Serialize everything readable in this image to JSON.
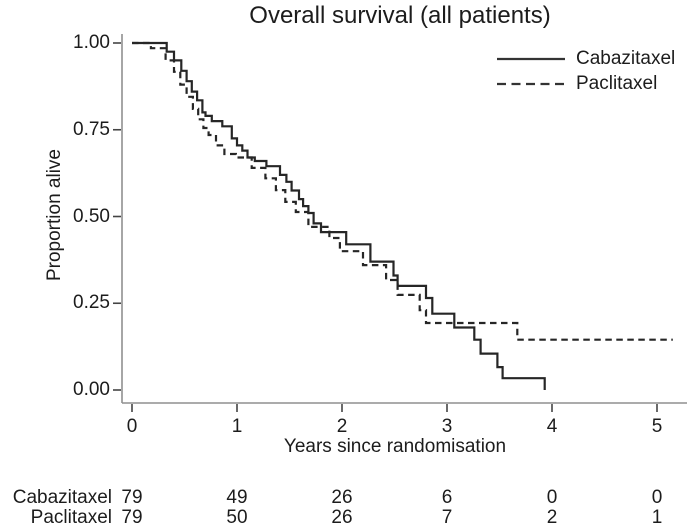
{
  "chart_data": {
    "type": "line",
    "subtype": "kaplan-meier-step",
    "title": "Overall survival (all patients)",
    "xlabel": "Years since randomisation",
    "ylabel": "Proportion alive",
    "xlim": [
      0,
      5.3
    ],
    "ylim": [
      0,
      1
    ],
    "grid": false,
    "legend_position": "top-right-inside",
    "x_tick_values": [
      0,
      1,
      2,
      3,
      4,
      5
    ],
    "x_tick_labels": [
      "0",
      "1",
      "2",
      "3",
      "4",
      "5"
    ],
    "y_tick_values": [
      0,
      0.25,
      0.5,
      0.75,
      1.0
    ],
    "y_tick_labels": [
      "0.00",
      "0.25",
      "0.50",
      "0.75",
      "1.00"
    ],
    "colors": {
      "curve": "#262626",
      "axis_line": "#8f8f8f",
      "tick_mark": "#444444",
      "text": "#1c1c1c"
    },
    "series": [
      {
        "name": "Cabazitaxel",
        "line_style": "solid",
        "steps": [
          [
            0,
            1.0
          ],
          [
            0.33,
            0.975
          ],
          [
            0.4,
            0.95
          ],
          [
            0.47,
            0.92
          ],
          [
            0.52,
            0.89
          ],
          [
            0.57,
            0.86
          ],
          [
            0.62,
            0.835
          ],
          [
            0.67,
            0.8
          ],
          [
            0.7,
            0.79
          ],
          [
            0.76,
            0.775
          ],
          [
            0.86,
            0.76
          ],
          [
            0.95,
            0.725
          ],
          [
            1.0,
            0.705
          ],
          [
            1.05,
            0.69
          ],
          [
            1.1,
            0.67
          ],
          [
            1.17,
            0.66
          ],
          [
            1.28,
            0.645
          ],
          [
            1.41,
            0.62
          ],
          [
            1.47,
            0.6
          ],
          [
            1.52,
            0.575
          ],
          [
            1.59,
            0.55
          ],
          [
            1.63,
            0.53
          ],
          [
            1.68,
            0.51
          ],
          [
            1.73,
            0.48
          ],
          [
            1.8,
            0.455
          ],
          [
            2.04,
            0.42
          ],
          [
            2.27,
            0.37
          ],
          [
            2.49,
            0.33
          ],
          [
            2.53,
            0.3
          ],
          [
            2.8,
            0.265
          ],
          [
            2.86,
            0.22
          ],
          [
            3.07,
            0.18
          ],
          [
            3.26,
            0.145
          ],
          [
            3.32,
            0.105
          ],
          [
            3.48,
            0.066
          ],
          [
            3.53,
            0.034
          ],
          [
            3.93,
            0.0
          ]
        ],
        "end_time": 3.93
      },
      {
        "name": "Paclitaxel",
        "line_style": "dashed",
        "steps": [
          [
            0,
            1.0
          ],
          [
            0.18,
            0.985
          ],
          [
            0.32,
            0.95
          ],
          [
            0.4,
            0.917
          ],
          [
            0.46,
            0.88
          ],
          [
            0.52,
            0.845
          ],
          [
            0.58,
            0.81
          ],
          [
            0.63,
            0.78
          ],
          [
            0.68,
            0.755
          ],
          [
            0.73,
            0.735
          ],
          [
            0.8,
            0.705
          ],
          [
            0.88,
            0.68
          ],
          [
            0.99,
            0.67
          ],
          [
            1.14,
            0.64
          ],
          [
            1.27,
            0.61
          ],
          [
            1.37,
            0.576
          ],
          [
            1.46,
            0.542
          ],
          [
            1.56,
            0.513
          ],
          [
            1.68,
            0.47
          ],
          [
            1.88,
            0.438
          ],
          [
            1.98,
            0.4
          ],
          [
            2.2,
            0.36
          ],
          [
            2.42,
            0.317
          ],
          [
            2.53,
            0.274
          ],
          [
            2.74,
            0.23
          ],
          [
            2.8,
            0.193
          ],
          [
            3.67,
            0.145
          ]
        ],
        "end_time": 5.15
      }
    ],
    "risk_table": {
      "times": [
        0,
        1,
        2,
        3,
        4,
        5
      ],
      "rows": [
        {
          "label": "Cabazitaxel",
          "counts": [
            "79",
            "49",
            "26",
            "6",
            "0",
            "0"
          ]
        },
        {
          "label": "Paclitaxel",
          "counts": [
            "79",
            "50",
            "26",
            "7",
            "2",
            "1"
          ]
        }
      ]
    }
  }
}
